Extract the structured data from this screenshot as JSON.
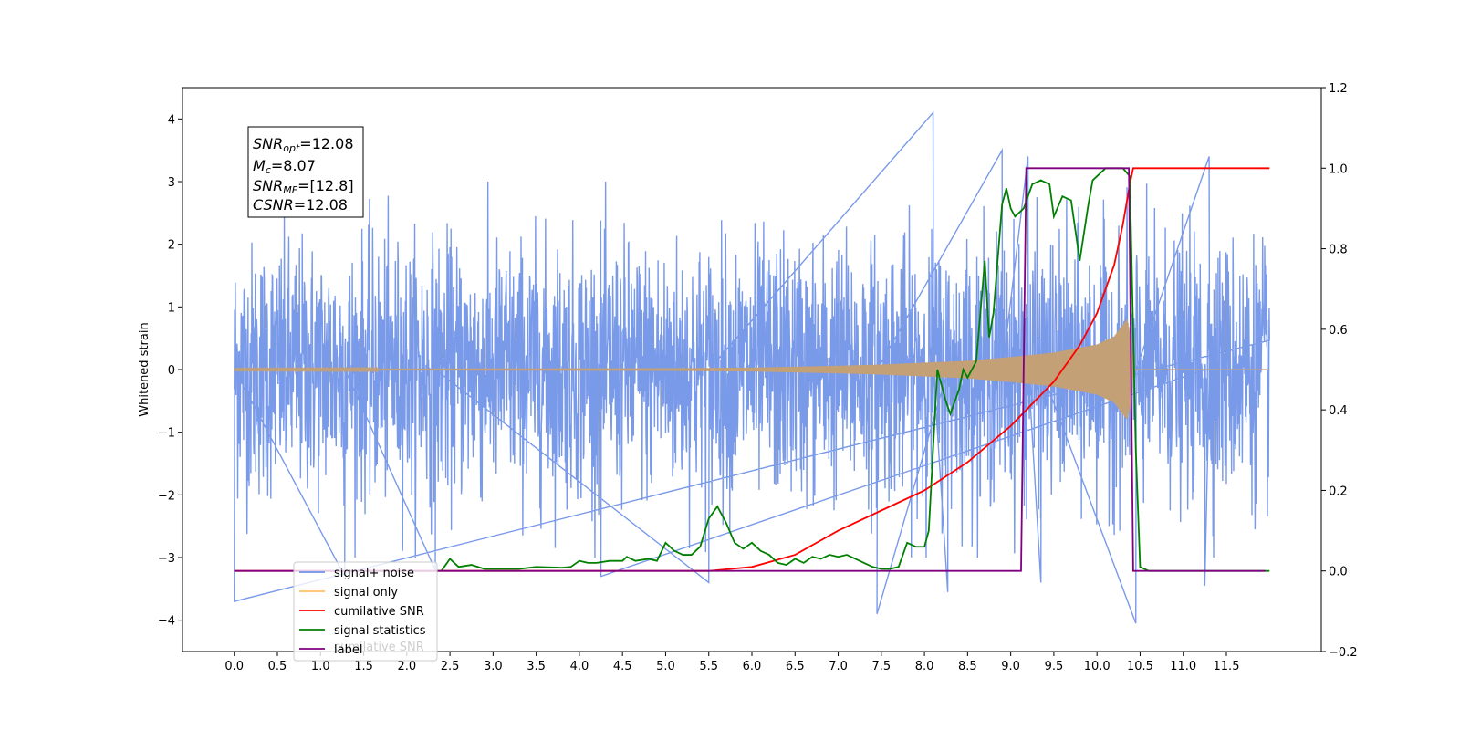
{
  "chart_data": {
    "type": "line",
    "ylabel_left": "Whitened strain",
    "xlim": [
      -0.6,
      12.6
    ],
    "ylim_left": [
      -4.5,
      4.5
    ],
    "ylim_right": [
      -0.2,
      1.2
    ],
    "x_ticks": [
      "0.0",
      "0.5",
      "1.0",
      "1.5",
      "2.0",
      "2.5",
      "3.0",
      "3.5",
      "4.0",
      "4.5",
      "5.0",
      "5.5",
      "6.0",
      "6.5",
      "7.0",
      "7.5",
      "8.0",
      "8.5",
      "9.0",
      "9.5",
      "10.0",
      "10.5",
      "11.0",
      "11.5"
    ],
    "y_ticks_left": [
      "4",
      "3",
      "2",
      "1",
      "0",
      "−1",
      "−2",
      "−3",
      "−4"
    ],
    "y_ticks_right": [
      "1.2",
      "1.0",
      "0.8",
      "0.6",
      "0.4",
      "0.2",
      "0.0",
      "−0.2"
    ],
    "grid": false,
    "annotation": {
      "lines": [
        {
          "main": "SNR",
          "sub": "opt",
          "rest": "=12.08"
        },
        {
          "main": "M",
          "sub": "c",
          "rest": "=8.07"
        },
        {
          "main": "SNR",
          "sub": "MF",
          "rest": "=[12.8]"
        },
        {
          "main": "CSNR",
          "sub": "",
          "rest": "=12.08"
        }
      ]
    },
    "legend": {
      "placement": "lower-left",
      "entries": [
        {
          "label": "signal+ noise",
          "color": "#7293e8"
        },
        {
          "label": "signal only",
          "color": "#ffbf66"
        },
        {
          "label": "cumilative SNR",
          "color": "#ff0000"
        },
        {
          "label": "signal statistics",
          "color": "#008000"
        },
        {
          "label": "label",
          "color": "#800080"
        }
      ],
      "ghost_text": "cumilative SNR"
    },
    "series": [
      {
        "name": "signal+ noise",
        "axis": "left",
        "color": "#7293e8",
        "x_range": [
          0.0,
          12.0
        ],
        "amplitude_sigma": 1.0,
        "extrema": [
          {
            "x": 0.0,
            "y": -3.7
          },
          {
            "x": 1.28,
            "y": -3.3
          },
          {
            "x": 2.33,
            "y": -3.2
          },
          {
            "x": 5.5,
            "y": -3.4
          },
          {
            "x": 8.1,
            "y": 4.1
          },
          {
            "x": 8.27,
            "y": -3.55
          },
          {
            "x": 7.45,
            "y": -3.9
          },
          {
            "x": 8.9,
            "y": 3.5
          },
          {
            "x": 9.2,
            "y": 3.4
          },
          {
            "x": 9.35,
            "y": -3.4
          },
          {
            "x": 10.45,
            "y": -4.05
          },
          {
            "x": 11.3,
            "y": 3.4
          },
          {
            "x": 11.25,
            "y": -3.45
          },
          {
            "x": 4.25,
            "y": -3.3
          }
        ]
      },
      {
        "name": "signal only",
        "axis": "left",
        "color": "#c4a077",
        "envelope": [
          [
            0,
            0.01
          ],
          [
            5.0,
            0.02
          ],
          [
            6.0,
            0.03
          ],
          [
            7.0,
            0.06
          ],
          [
            7.5,
            0.08
          ],
          [
            8.0,
            0.11
          ],
          [
            8.5,
            0.14
          ],
          [
            9.0,
            0.2
          ],
          [
            9.5,
            0.27
          ],
          [
            10.0,
            0.4
          ],
          [
            10.2,
            0.53
          ],
          [
            10.35,
            0.8
          ],
          [
            10.4,
            0.5
          ],
          [
            10.42,
            0.0
          ],
          [
            12.0,
            0.0
          ]
        ]
      },
      {
        "name": "cumilative SNR",
        "axis": "right",
        "color": "#ff0000",
        "points": [
          [
            0.0,
            0.0
          ],
          [
            5.5,
            0.0
          ],
          [
            6.0,
            0.01
          ],
          [
            6.5,
            0.04
          ],
          [
            7.0,
            0.1
          ],
          [
            7.5,
            0.15
          ],
          [
            8.0,
            0.2
          ],
          [
            8.5,
            0.27
          ],
          [
            9.0,
            0.36
          ],
          [
            9.5,
            0.47
          ],
          [
            9.8,
            0.56
          ],
          [
            10.0,
            0.64
          ],
          [
            10.2,
            0.76
          ],
          [
            10.3,
            0.86
          ],
          [
            10.38,
            0.96
          ],
          [
            10.42,
            1.0
          ],
          [
            12.0,
            1.0
          ]
        ]
      },
      {
        "name": "signal statistics",
        "axis": "right",
        "color": "#008000",
        "points": [
          [
            2.4,
            0.0
          ],
          [
            2.5,
            0.03
          ],
          [
            2.6,
            0.01
          ],
          [
            2.75,
            0.015
          ],
          [
            2.9,
            0.005
          ],
          [
            3.0,
            0.005
          ],
          [
            3.3,
            0.005
          ],
          [
            3.5,
            0.01
          ],
          [
            3.8,
            0.008
          ],
          [
            3.9,
            0.01
          ],
          [
            4.0,
            0.025
          ],
          [
            4.1,
            0.02
          ],
          [
            4.2,
            0.02
          ],
          [
            4.35,
            0.025
          ],
          [
            4.5,
            0.025
          ],
          [
            4.55,
            0.035
          ],
          [
            4.65,
            0.025
          ],
          [
            4.8,
            0.03
          ],
          [
            4.9,
            0.025
          ],
          [
            5.0,
            0.07
          ],
          [
            5.1,
            0.05
          ],
          [
            5.2,
            0.04
          ],
          [
            5.3,
            0.04
          ],
          [
            5.4,
            0.06
          ],
          [
            5.5,
            0.13
          ],
          [
            5.6,
            0.16
          ],
          [
            5.7,
            0.12
          ],
          [
            5.8,
            0.07
          ],
          [
            5.9,
            0.055
          ],
          [
            6.0,
            0.07
          ],
          [
            6.1,
            0.05
          ],
          [
            6.2,
            0.04
          ],
          [
            6.3,
            0.02
          ],
          [
            6.4,
            0.015
          ],
          [
            6.5,
            0.03
          ],
          [
            6.6,
            0.02
          ],
          [
            6.7,
            0.035
          ],
          [
            6.8,
            0.03
          ],
          [
            6.9,
            0.04
          ],
          [
            7.0,
            0.035
          ],
          [
            7.1,
            0.04
          ],
          [
            7.2,
            0.03
          ],
          [
            7.3,
            0.02
          ],
          [
            7.4,
            0.01
          ],
          [
            7.5,
            0.005
          ],
          [
            7.6,
            0.005
          ],
          [
            7.7,
            0.01
          ],
          [
            7.8,
            0.07
          ],
          [
            7.9,
            0.06
          ],
          [
            8.0,
            0.06
          ],
          [
            8.05,
            0.1
          ],
          [
            8.15,
            0.5
          ],
          [
            8.25,
            0.42
          ],
          [
            8.3,
            0.39
          ],
          [
            8.4,
            0.45
          ],
          [
            8.45,
            0.5
          ],
          [
            8.5,
            0.48
          ],
          [
            8.6,
            0.52
          ],
          [
            8.7,
            0.77
          ],
          [
            8.75,
            0.58
          ],
          [
            8.8,
            0.64
          ],
          [
            8.9,
            0.91
          ],
          [
            8.95,
            0.95
          ],
          [
            9.0,
            0.9
          ],
          [
            9.05,
            0.88
          ],
          [
            9.15,
            0.9
          ],
          [
            9.25,
            0.96
          ],
          [
            9.35,
            0.97
          ],
          [
            9.45,
            0.96
          ],
          [
            9.5,
            0.88
          ],
          [
            9.6,
            0.93
          ],
          [
            9.7,
            0.92
          ],
          [
            9.8,
            0.77
          ],
          [
            9.9,
            0.91
          ],
          [
            9.95,
            0.97
          ],
          [
            10.1,
            1.0
          ],
          [
            10.3,
            1.0
          ],
          [
            10.38,
            0.98
          ],
          [
            10.45,
            0.3
          ],
          [
            10.5,
            0.01
          ],
          [
            10.6,
            0.0
          ],
          [
            12.0,
            0.0
          ]
        ]
      },
      {
        "name": "label",
        "axis": "right",
        "color": "#800080",
        "points": [
          [
            0.0,
            0.0
          ],
          [
            9.12,
            0.0
          ],
          [
            9.18,
            1.0
          ],
          [
            10.37,
            1.0
          ],
          [
            10.42,
            0.0
          ],
          [
            11.95,
            0.0
          ]
        ]
      }
    ]
  }
}
